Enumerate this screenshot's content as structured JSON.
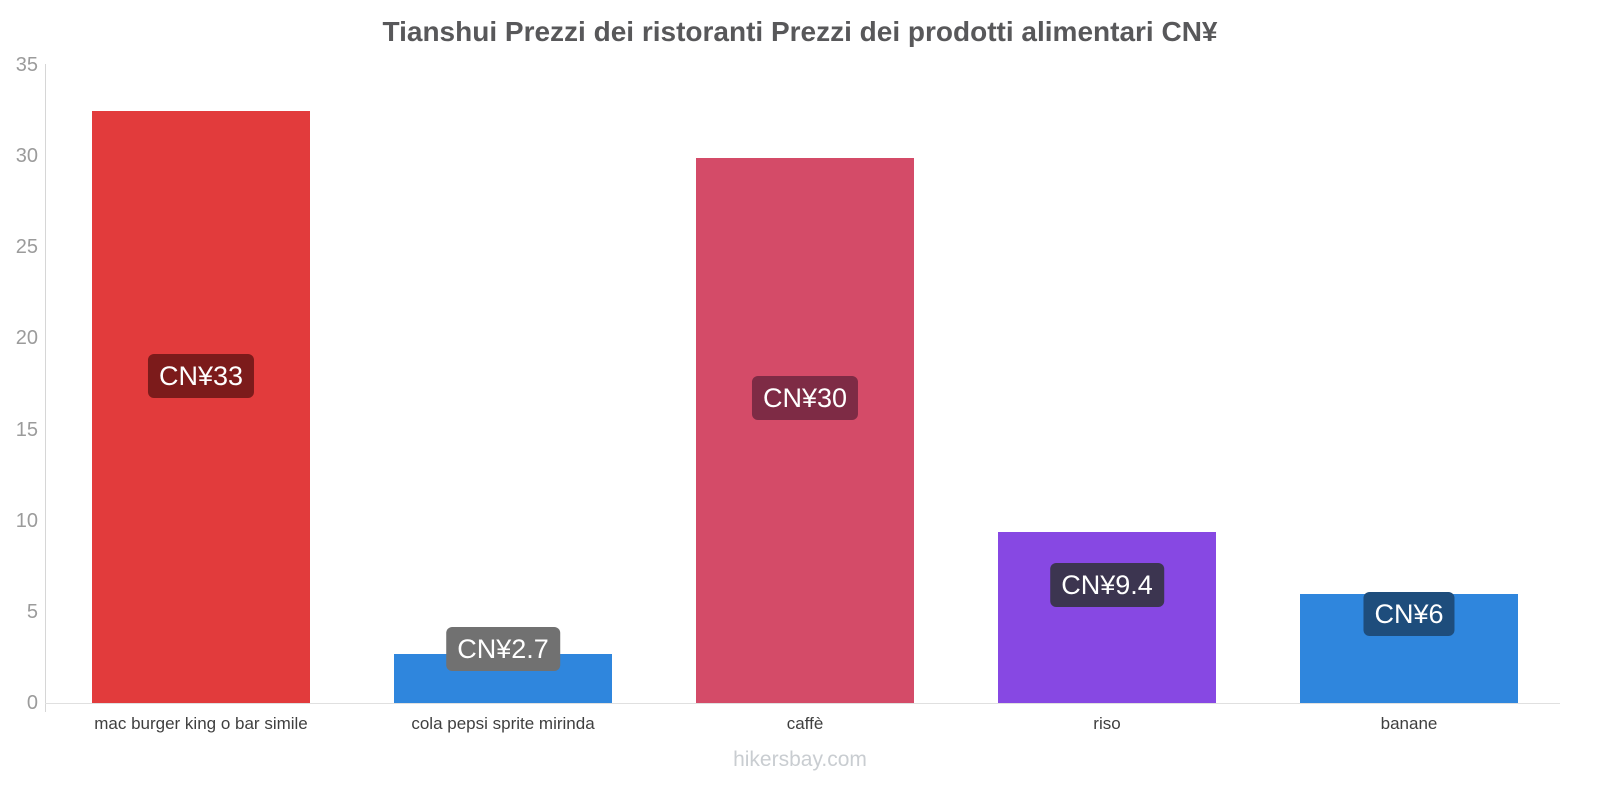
{
  "title": "Tianshui Prezzi dei ristoranti Prezzi dei prodotti alimentari CN¥",
  "footer": "hikersbay.com",
  "chart_data": {
    "type": "bar",
    "title": "Tianshui Prezzi dei ristoranti Prezzi dei prodotti alimentari CN¥",
    "categories": [
      "mac burger king o bar simile",
      "cola pepsi sprite mirinda",
      "caffè",
      "riso",
      "banane"
    ],
    "values": [
      32.5,
      2.7,
      29.9,
      9.4,
      6
    ],
    "value_labels": [
      "CN¥33",
      "CN¥2.7",
      "CN¥30",
      "CN¥9.4",
      "CN¥6"
    ],
    "bar_colors": [
      "#e23b3c",
      "#2f86dd",
      "#d44b68",
      "#8748e3",
      "#2f86dd"
    ],
    "label_bg_colors": [
      "#7c1b1b",
      "#717171",
      "#7e2b45",
      "#3c3550",
      "#1e4d7c"
    ],
    "label_text_color": "#ffffff",
    "xlabel": "",
    "ylabel": "",
    "ylim": [
      0,
      35
    ],
    "yticks": [
      0,
      5,
      10,
      15,
      20,
      25,
      30,
      35
    ],
    "grid": false,
    "legend": "none",
    "label_pos_frac": [
      0.447,
      -0.1,
      0.44,
      0.31,
      0.18
    ]
  }
}
